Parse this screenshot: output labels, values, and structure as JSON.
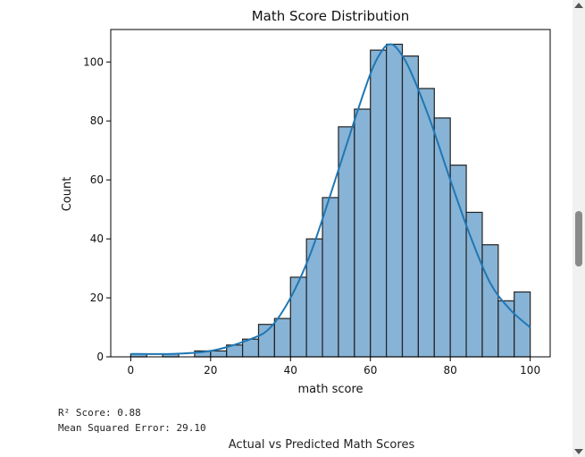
{
  "chart_data": {
    "type": "bar",
    "title": "Math Score Distribution",
    "xlabel": "math score",
    "ylabel": "Count",
    "xlim": [
      -5,
      105
    ],
    "ylim": [
      0,
      111
    ],
    "xticks": [
      0,
      20,
      40,
      60,
      80,
      100
    ],
    "yticks": [
      0,
      20,
      40,
      60,
      80,
      100
    ],
    "bin_edges": [
      0,
      4,
      8,
      12,
      16,
      20,
      24,
      28,
      32,
      36,
      40,
      44,
      48,
      52,
      56,
      60,
      64,
      68,
      72,
      76,
      80,
      84,
      88,
      92,
      96,
      100
    ],
    "values": [
      1,
      0,
      1,
      0,
      2,
      2,
      4,
      6,
      11,
      13,
      27,
      40,
      54,
      78,
      84,
      104,
      106,
      102,
      91,
      81,
      65,
      49,
      38,
      19,
      22
    ],
    "kde": {
      "x": [
        0,
        10,
        20,
        30,
        35,
        40,
        45,
        50,
        55,
        60,
        63,
        65,
        67,
        70,
        75,
        80,
        85,
        90,
        95,
        100
      ],
      "y": [
        1,
        1,
        2,
        6,
        10,
        20,
        35,
        55,
        76,
        96,
        104,
        106,
        104,
        97,
        80,
        60,
        41,
        25,
        16,
        10
      ]
    },
    "bar_color": "#87b3d6",
    "bar_edge_color": "#222222",
    "line_color": "#1f77b4",
    "grid": false
  },
  "output": {
    "r2_line": "R² Score: 0.88",
    "mse_line": "Mean Squared Error: 29.10"
  },
  "next_chart_title": "Actual vs Predicted Math Scores"
}
